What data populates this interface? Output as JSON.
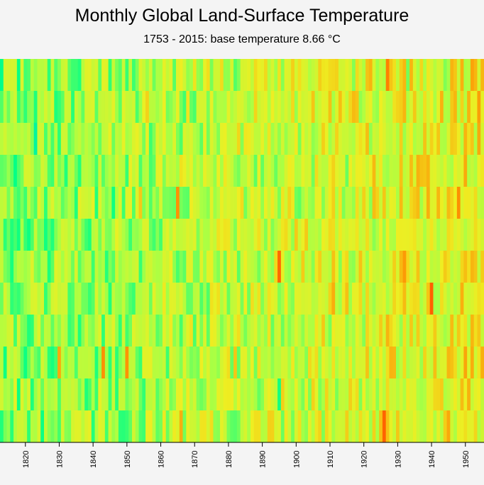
{
  "chart_data": {
    "type": "heatmap",
    "title": "Monthly Global Land-Surface Temperature",
    "subtitle": "1753 - 2015: base temperature 8.66 °C",
    "base_temperature": 8.66,
    "x_range": [
      1813,
      1956
    ],
    "x_ticks": [
      1820,
      1830,
      1840,
      1850,
      1860,
      1870,
      1880,
      1890,
      1900,
      1910,
      1920,
      1930,
      1940,
      1950
    ],
    "rows": 12,
    "color_scale": [
      "#00ccff",
      "#00ff88",
      "#aaff44",
      "#eeee22",
      "#ff8800",
      "#ff2200"
    ],
    "variance_range": [
      -2,
      2
    ],
    "grid": false
  }
}
